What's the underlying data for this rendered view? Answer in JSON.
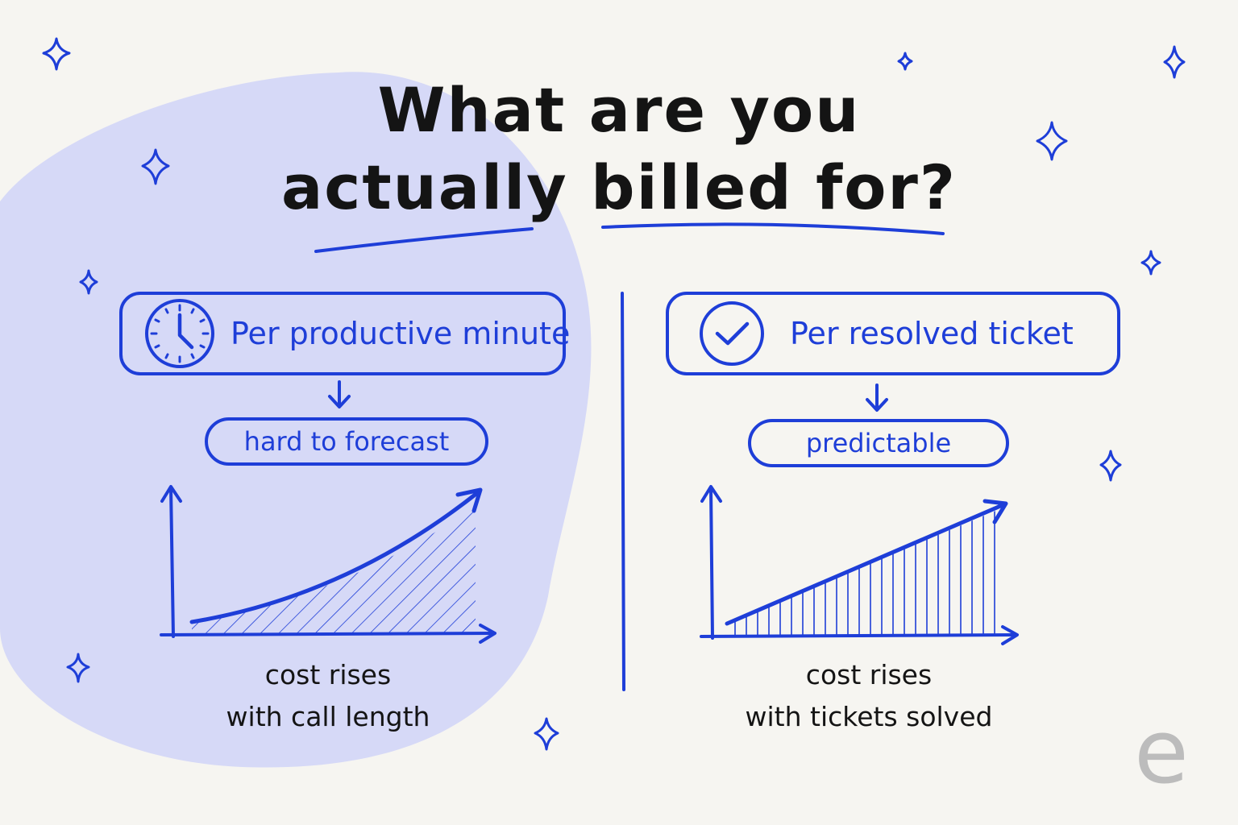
{
  "title": {
    "line1": "What are you",
    "line2": "actually billed for?"
  },
  "colors": {
    "accent": "#1e3ed8",
    "blob": "#d6d9f7",
    "background": "#f6f5f1",
    "text": "#141414"
  },
  "left": {
    "icon": "clock-icon",
    "option": "Per productive minute",
    "result": "hard to forecast",
    "caption_line1": "cost rises",
    "caption_line2": "with call length",
    "chart_shape": "exponential"
  },
  "right": {
    "icon": "check-circle-icon",
    "option": "Per resolved ticket",
    "result": "predictable",
    "caption_line1": "cost rises",
    "caption_line2": "with tickets solved",
    "chart_shape": "linear"
  },
  "logo": {
    "letter": "e"
  }
}
